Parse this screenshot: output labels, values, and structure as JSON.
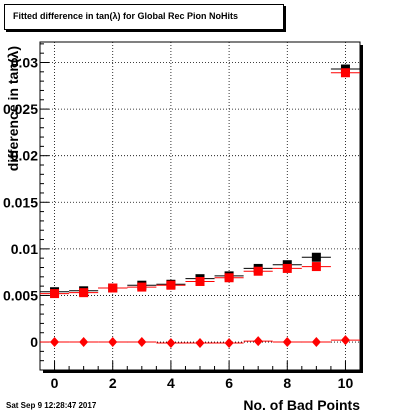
{
  "header": {
    "title": "Fitted difference in tan(λ) for Global Rec Pion NoHits"
  },
  "footer": {
    "timestamp": "Sat Sep  9 12:28:47 2017"
  },
  "chart_data": {
    "type": "scatter",
    "title": "Fitted difference in tan(λ) for Global Rec Pion NoHits",
    "xlabel": "No. of Bad Points",
    "ylabel": "difference in tan(λ)",
    "xlim": [
      -0.5,
      10.5
    ],
    "ylim": [
      -0.003,
      0.0322
    ],
    "grid": true,
    "xticks": [
      "0",
      "2",
      "4",
      "6",
      "8",
      "10"
    ],
    "yticks": [
      "0",
      "0.005",
      "0.01",
      "0.015",
      "0.02",
      "0.025",
      "0.03"
    ],
    "series": [
      {
        "marker": "square",
        "color": "#000000",
        "x": [
          0,
          1,
          2,
          3,
          4,
          5,
          6,
          7,
          8,
          9,
          10
        ],
        "y": [
          0.0054,
          0.0055,
          0.0058,
          0.0061,
          0.0062,
          0.0068,
          0.0071,
          0.0079,
          0.0083,
          0.0091,
          0.0293
        ]
      },
      {
        "marker": "square",
        "color": "#ff0000",
        "x": [
          0,
          1,
          2,
          3,
          4,
          5,
          6,
          7,
          8,
          9,
          10
        ],
        "y": [
          0.0052,
          0.0053,
          0.0058,
          0.0059,
          0.0061,
          0.0065,
          0.0069,
          0.0076,
          0.0079,
          0.0081,
          0.0289
        ]
      },
      {
        "marker": "diamond",
        "color": "#ff0000",
        "x": [
          0,
          1,
          2,
          3,
          4,
          5,
          6,
          7,
          8,
          9,
          10
        ],
        "y": [
          0.0,
          0.0,
          0.0,
          0.0,
          -0.0001,
          -0.0001,
          -0.0001,
          0.0001,
          0.0,
          0.0,
          0.0002
        ]
      }
    ]
  }
}
